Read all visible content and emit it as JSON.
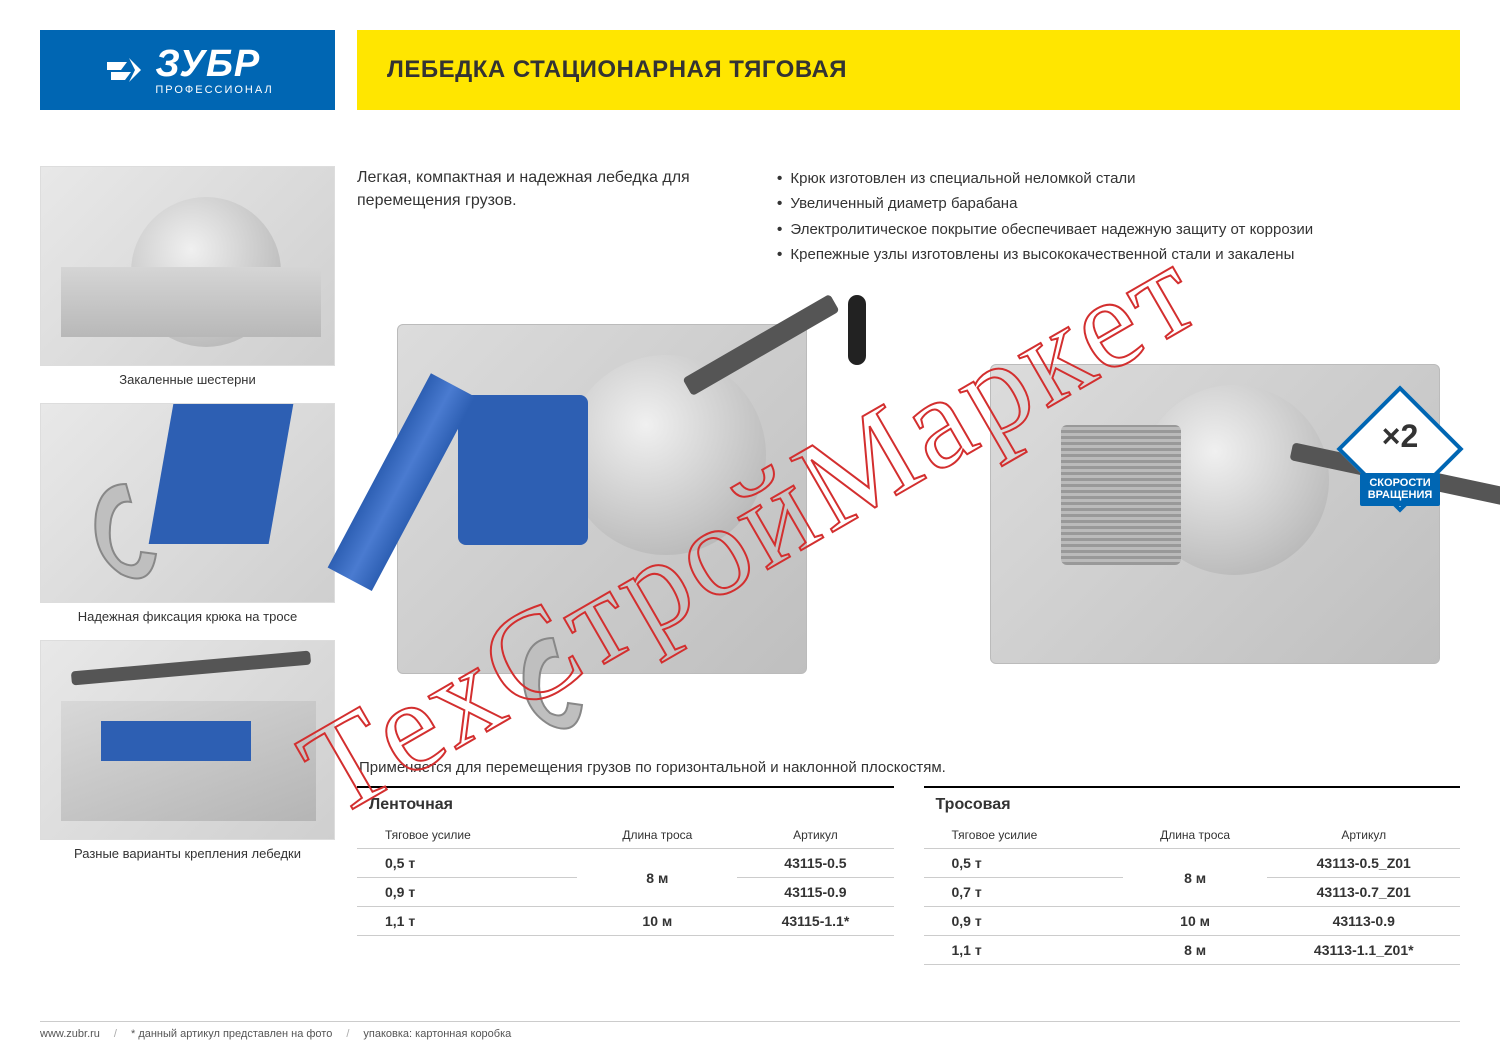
{
  "brand": {
    "name": "ЗУБР",
    "sub": "ПРОФЕССИОНАЛ",
    "color": "#0066b3"
  },
  "title": "ЛЕБЕДКА СТАЦИОНАРНАЯ ТЯГОВАЯ",
  "title_bg": "#ffe600",
  "intro": "Легкая, компактная и надежная лебедка для перемещения грузов.",
  "bullets": [
    "Крюк изготовлен из специальной неломкой стали",
    "Увеличенный диаметр барабана",
    "Электролитическое покрытие обеспечивает надежную защиту от коррозии",
    "Крепежные узлы изготовлены из высококачественной стали и закалены"
  ],
  "thumbs": [
    {
      "caption": "Закаленные шестерни"
    },
    {
      "caption": "Надежная фиксация крюка на тросе"
    },
    {
      "caption": "Разные варианты крепления лебедки"
    }
  ],
  "badge": {
    "x2": "×2",
    "line1": "СКОРОСТИ",
    "line2": "ВРАЩЕНИЯ"
  },
  "usage": "Применяется для перемещения грузов по горизонтальной и наклонной плоскостям.",
  "tables": {
    "headers": [
      "Тяговое усилие",
      "Длина троса",
      "Артикул"
    ],
    "left": {
      "title": "Ленточная",
      "rows": [
        {
          "force": "0,5 т",
          "len": "8 м",
          "len_span": 2,
          "sku": "43115-0.5"
        },
        {
          "force": "0,9 т",
          "sku": "43115-0.9"
        },
        {
          "force": "1,1 т",
          "len": "10 м",
          "len_span": 1,
          "sku": "43115-1.1*"
        }
      ]
    },
    "right": {
      "title": "Тросовая",
      "rows": [
        {
          "force": "0,5 т",
          "len": "8 м",
          "len_span": 2,
          "sku": "43113-0.5_Z01"
        },
        {
          "force": "0,7 т",
          "sku": "43113-0.7_Z01"
        },
        {
          "force": "0,9 т",
          "len": "10 м",
          "len_span": 1,
          "sku": "43113-0.9"
        },
        {
          "force": "1,1 т",
          "len": "8 м",
          "len_span": 1,
          "sku": "43113-1.1_Z01*"
        }
      ]
    }
  },
  "footer": {
    "url": "www.zubr.ru",
    "note": "* данный артикул представлен на фото",
    "pack": "упаковка: картонная коробка"
  },
  "watermark": "ТехСтройМаркет"
}
